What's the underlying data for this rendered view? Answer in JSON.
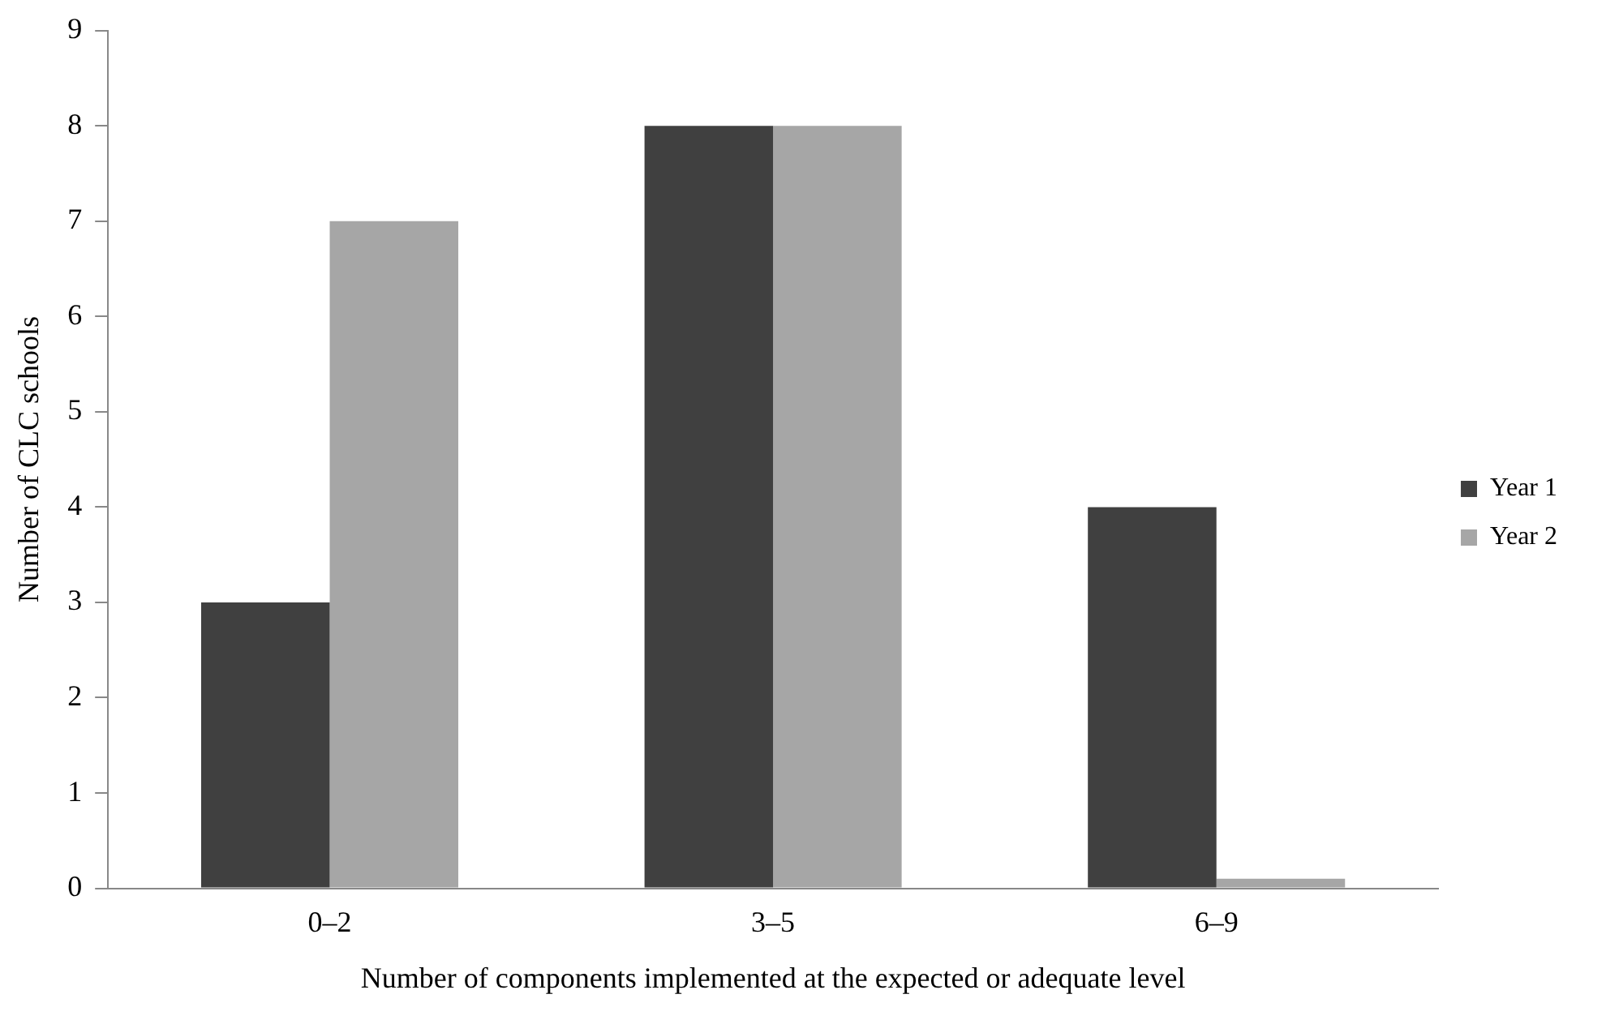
{
  "chart_data": {
    "type": "bar",
    "xlabel": "Number of components implemented at the expected or adequate level",
    "ylabel": "Number of CLC schools",
    "categories": [
      "0–2",
      "3–5",
      "6–9"
    ],
    "series": [
      {
        "name": "Year 1",
        "color": "#404040",
        "values": [
          3,
          8,
          4
        ]
      },
      {
        "name": "Year 2",
        "color": "#a6a6a6",
        "values": [
          7,
          8,
          0.1
        ]
      }
    ],
    "ylim": [
      0,
      9
    ],
    "yticks": [
      0,
      1,
      2,
      3,
      4,
      5,
      6,
      7,
      8,
      9
    ],
    "grid": false,
    "legend": "right"
  }
}
